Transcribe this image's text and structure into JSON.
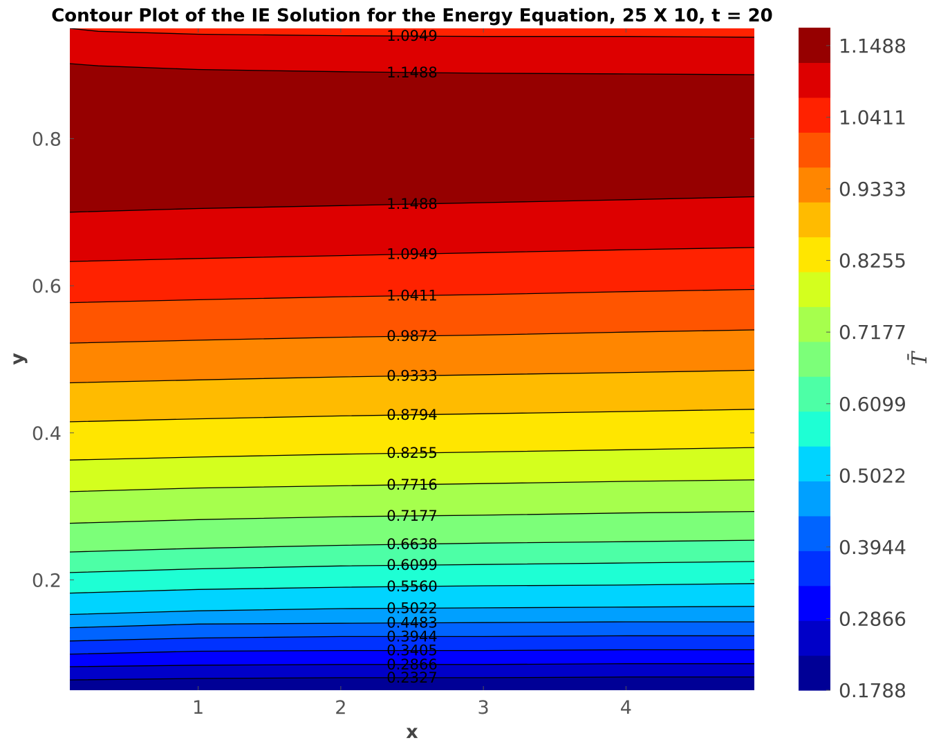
{
  "chart_data": {
    "type": "contour",
    "title": "Contour Plot of the IE Solution for the Energy Equation, 25 X 10, t = 20",
    "xlabel": "x",
    "ylabel": "y",
    "xlim": [
      0.1,
      4.9
    ],
    "ylim": [
      0.05,
      0.95
    ],
    "x_ticks": [
      "1",
      "2",
      "3",
      "4"
    ],
    "y_ticks": [
      "0.2",
      "0.4",
      "0.6",
      "0.8"
    ],
    "grid": false,
    "colorbar": {
      "label": "T̄",
      "ticks": [
        "0.1788",
        "0.2866",
        "0.3944",
        "0.5022",
        "0.6099",
        "0.7177",
        "0.8255",
        "0.9333",
        "1.0411",
        "1.1488"
      ],
      "range": [
        0.1788,
        1.1758
      ]
    },
    "levels": [
      0.1788,
      0.2327,
      0.2866,
      0.3405,
      0.3944,
      0.4483,
      0.5022,
      0.556,
      0.6099,
      0.6638,
      0.7177,
      0.7716,
      0.8255,
      0.8794,
      0.9333,
      0.9872,
      1.0411,
      1.0949,
      1.1488
    ],
    "band_colors": [
      "#000096",
      "#0000c8",
      "#0000ff",
      "#0032ff",
      "#0064ff",
      "#00a0ff",
      "#00d4ff",
      "#1effd4",
      "#4dffa6",
      "#7cff79",
      "#a6ff4d",
      "#d4ff1e",
      "#ffe600",
      "#ffbb00",
      "#ff8600",
      "#ff5500",
      "#ff2200",
      "#dd0000",
      "#960000"
    ],
    "contour_lines": [
      {
        "label": "0.2327",
        "points": [
          [
            0.1,
            0.064
          ],
          [
            1.0,
            0.066
          ],
          [
            2.0,
            0.067
          ],
          [
            3.0,
            0.067
          ],
          [
            4.0,
            0.068
          ],
          [
            4.9,
            0.068
          ]
        ]
      },
      {
        "label": "0.2866",
        "points": [
          [
            0.1,
            0.082
          ],
          [
            1.0,
            0.084
          ],
          [
            2.0,
            0.085
          ],
          [
            3.0,
            0.085
          ],
          [
            4.0,
            0.086
          ],
          [
            4.9,
            0.086
          ]
        ]
      },
      {
        "label": "0.3405",
        "points": [
          [
            0.1,
            0.099
          ],
          [
            1.0,
            0.103
          ],
          [
            2.0,
            0.104
          ],
          [
            3.0,
            0.104
          ],
          [
            4.0,
            0.105
          ],
          [
            4.9,
            0.105
          ]
        ]
      },
      {
        "label": "0.3944",
        "points": [
          [
            0.1,
            0.117
          ],
          [
            1.0,
            0.121
          ],
          [
            2.0,
            0.123
          ],
          [
            3.0,
            0.123
          ],
          [
            4.0,
            0.124
          ],
          [
            4.9,
            0.124
          ]
        ]
      },
      {
        "label": "0.4483",
        "points": [
          [
            0.1,
            0.135
          ],
          [
            1.0,
            0.14
          ],
          [
            2.0,
            0.141
          ],
          [
            3.0,
            0.142
          ],
          [
            4.0,
            0.143
          ],
          [
            4.9,
            0.143
          ]
        ]
      },
      {
        "label": "0.5022",
        "points": [
          [
            0.1,
            0.153
          ],
          [
            1.0,
            0.158
          ],
          [
            2.0,
            0.161
          ],
          [
            3.0,
            0.162
          ],
          [
            4.0,
            0.163
          ],
          [
            4.9,
            0.164
          ]
        ]
      },
      {
        "label": "0.5560",
        "points": [
          [
            0.1,
            0.182
          ],
          [
            1.0,
            0.187
          ],
          [
            2.0,
            0.19
          ],
          [
            3.0,
            0.192
          ],
          [
            4.0,
            0.193
          ],
          [
            4.9,
            0.195
          ]
        ]
      },
      {
        "label": "0.6099",
        "points": [
          [
            0.1,
            0.21
          ],
          [
            1.0,
            0.215
          ],
          [
            2.0,
            0.219
          ],
          [
            3.0,
            0.221
          ],
          [
            4.0,
            0.223
          ],
          [
            4.9,
            0.225
          ]
        ]
      },
      {
        "label": "0.6638",
        "points": [
          [
            0.1,
            0.238
          ],
          [
            1.0,
            0.243
          ],
          [
            2.0,
            0.247
          ],
          [
            3.0,
            0.25
          ],
          [
            4.0,
            0.252
          ],
          [
            4.9,
            0.254
          ]
        ]
      },
      {
        "label": "0.7177",
        "points": [
          [
            0.1,
            0.277
          ],
          [
            1.0,
            0.282
          ],
          [
            2.0,
            0.286
          ],
          [
            3.0,
            0.288
          ],
          [
            4.0,
            0.291
          ],
          [
            4.9,
            0.293
          ]
        ]
      },
      {
        "label": "0.7716",
        "points": [
          [
            0.1,
            0.32
          ],
          [
            1.0,
            0.325
          ],
          [
            2.0,
            0.328
          ],
          [
            3.0,
            0.331
          ],
          [
            4.0,
            0.334
          ],
          [
            4.9,
            0.336
          ]
        ]
      },
      {
        "label": "0.8255",
        "points": [
          [
            0.1,
            0.363
          ],
          [
            1.0,
            0.367
          ],
          [
            2.0,
            0.371
          ],
          [
            3.0,
            0.374
          ],
          [
            4.0,
            0.377
          ],
          [
            4.9,
            0.38
          ]
        ]
      },
      {
        "label": "0.8794",
        "points": [
          [
            0.1,
            0.415
          ],
          [
            1.0,
            0.419
          ],
          [
            2.0,
            0.423
          ],
          [
            3.0,
            0.426
          ],
          [
            4.0,
            0.429
          ],
          [
            4.9,
            0.432
          ]
        ]
      },
      {
        "label": "0.9333",
        "points": [
          [
            0.1,
            0.468
          ],
          [
            1.0,
            0.472
          ],
          [
            2.0,
            0.476
          ],
          [
            3.0,
            0.479
          ],
          [
            4.0,
            0.482
          ],
          [
            4.9,
            0.485
          ]
        ]
      },
      {
        "label": "0.9872",
        "points": [
          [
            0.1,
            0.522
          ],
          [
            1.0,
            0.526
          ],
          [
            2.0,
            0.53
          ],
          [
            3.0,
            0.533
          ],
          [
            4.0,
            0.537
          ],
          [
            4.9,
            0.54
          ]
        ]
      },
      {
        "label": "1.0411",
        "points": [
          [
            0.1,
            0.577
          ],
          [
            1.0,
            0.581
          ],
          [
            2.0,
            0.585
          ],
          [
            3.0,
            0.588
          ],
          [
            4.0,
            0.592
          ],
          [
            4.9,
            0.595
          ]
        ]
      },
      {
        "label": "1.0949",
        "points": [
          [
            0.1,
            0.633
          ],
          [
            1.0,
            0.637
          ],
          [
            2.0,
            0.641
          ],
          [
            3.0,
            0.645
          ],
          [
            4.0,
            0.649
          ],
          [
            4.9,
            0.652
          ]
        ]
      },
      {
        "label": "1.1488",
        "points": [
          [
            0.1,
            0.7
          ],
          [
            1.0,
            0.705
          ],
          [
            2.0,
            0.709
          ],
          [
            3.0,
            0.713
          ],
          [
            4.0,
            0.717
          ],
          [
            4.9,
            0.721
          ]
        ]
      },
      {
        "label": "1.1488",
        "points": [
          [
            0.1,
            0.902
          ],
          [
            0.3,
            0.899
          ],
          [
            1.0,
            0.894
          ],
          [
            2.0,
            0.891
          ],
          [
            3.0,
            0.889
          ],
          [
            4.0,
            0.888
          ],
          [
            4.9,
            0.887
          ]
        ]
      },
      {
        "label": "1.0949",
        "points": [
          [
            0.1,
            0.95
          ],
          [
            0.3,
            0.946
          ],
          [
            1.0,
            0.942
          ],
          [
            2.0,
            0.94
          ],
          [
            3.0,
            0.939
          ],
          [
            4.0,
            0.939
          ],
          [
            4.9,
            0.938
          ]
        ]
      }
    ]
  }
}
